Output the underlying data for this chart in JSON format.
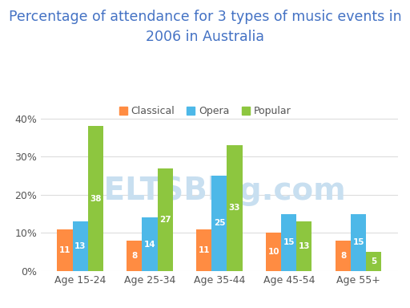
{
  "title": "Percentage of attendance for 3 types of music events in\n2006 in Australia",
  "categories": [
    "Age 15-24",
    "Age 25-34",
    "Age 35-44",
    "Age 45-54",
    "Age 55+"
  ],
  "series": {
    "Classical": [
      11,
      8,
      11,
      10,
      8
    ],
    "Opera": [
      13,
      14,
      25,
      15,
      15
    ],
    "Popular": [
      38,
      27,
      33,
      13,
      5
    ]
  },
  "colors": {
    "Classical": "#FF8C42",
    "Opera": "#4DB8E8",
    "Popular": "#8DC63F"
  },
  "legend_labels": [
    "Classical",
    "Opera",
    "Popular"
  ],
  "ylim": [
    0,
    42
  ],
  "yticks": [
    0,
    10,
    20,
    30,
    40
  ],
  "ytick_labels": [
    "0%",
    "10%",
    "20%",
    "30%",
    "40%"
  ],
  "bar_width": 0.22,
  "title_fontsize": 12.5,
  "tick_fontsize": 9,
  "legend_fontsize": 9,
  "value_fontsize": 7.5,
  "background_color": "#ffffff",
  "grid_color": "#dddddd",
  "title_color": "#4472C4",
  "tick_color": "#555555",
  "watermark": "IELTSBlog.com",
  "watermark_color": "#c8dff0",
  "watermark_fontsize": 28
}
